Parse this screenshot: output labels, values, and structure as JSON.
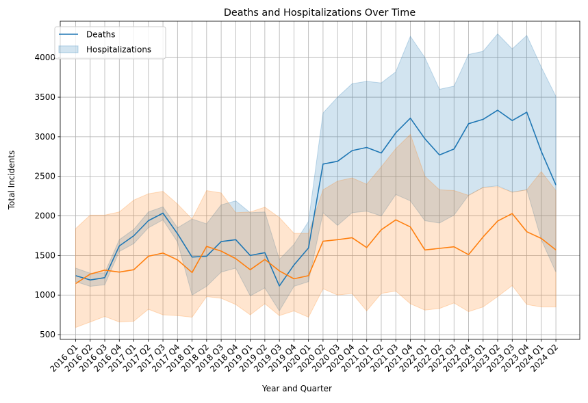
{
  "chart_data": {
    "type": "line",
    "title": "Deaths and Hospitalizations Over Time",
    "xlabel": "Year and Quarter",
    "ylabel": "Total Incidents",
    "ylim": [
      440,
      4460
    ],
    "yticks": [
      500,
      1000,
      1500,
      2000,
      2500,
      3000,
      3500,
      4000
    ],
    "grid": true,
    "legend_position": "top-left",
    "categories": [
      "2016 Q1",
      "2016 Q2",
      "2016 Q3",
      "2016 Q4",
      "2017 Q1",
      "2017 Q2",
      "2017 Q3",
      "2017 Q4",
      "2018 Q1",
      "2018 Q2",
      "2018 Q3",
      "2018 Q4",
      "2019 Q1",
      "2019 Q2",
      "2019 Q3",
      "2019 Q4",
      "2020 Q1",
      "2020 Q2",
      "2020 Q3",
      "2020 Q4",
      "2021 Q1",
      "2021 Q2",
      "2021 Q3",
      "2021 Q4",
      "2022 Q1",
      "2022 Q2",
      "2022 Q3",
      "2022 Q4",
      "2023 Q1",
      "2023 Q2",
      "2023 Q3",
      "2023 Q4",
      "2024 Q1",
      "2024 Q2"
    ],
    "series": [
      {
        "name": "Deaths",
        "color": "#1f77b4",
        "values": [
          1245,
          1190,
          1220,
          1620,
          1750,
          1940,
          2035,
          1775,
          1480,
          1490,
          1675,
          1700,
          1500,
          1535,
          1115,
          1380,
          1595,
          2655,
          2690,
          2825,
          2865,
          2795,
          3050,
          3235,
          2975,
          2770,
          2845,
          3165,
          3220,
          3335,
          3205,
          3310,
          2815,
          2390
        ],
        "band_low": [
          1170,
          1110,
          1130,
          1550,
          1650,
          1850,
          1950,
          1670,
          1000,
          1110,
          1290,
          1340,
          990,
          1090,
          800,
          1110,
          1170,
          2040,
          1880,
          2040,
          2060,
          2000,
          2270,
          2190,
          1940,
          1910,
          2010,
          2260,
          2360,
          2380,
          2300,
          2330,
          1700,
          1290
        ],
        "band_high": [
          1340,
          1275,
          1280,
          1700,
          1830,
          2050,
          2115,
          1850,
          1960,
          1900,
          2140,
          2190,
          2040,
          2050,
          1450,
          1640,
          1930,
          3300,
          3500,
          3670,
          3700,
          3680,
          3820,
          4270,
          4000,
          3600,
          3640,
          4040,
          4080,
          4300,
          4110,
          4280,
          3880,
          3510
        ]
      },
      {
        "name": "",
        "color": "#ff7f0e",
        "values": [
          1145,
          1265,
          1315,
          1290,
          1320,
          1490,
          1530,
          1445,
          1285,
          1615,
          1555,
          1460,
          1320,
          1450,
          1305,
          1205,
          1245,
          1680,
          1700,
          1725,
          1600,
          1825,
          1950,
          1860,
          1570,
          1590,
          1610,
          1510,
          1735,
          1935,
          2030,
          1800,
          1715,
          1570
        ],
        "band_low": [
          590,
          660,
          730,
          660,
          670,
          820,
          750,
          740,
          720,
          980,
          960,
          880,
          750,
          890,
          740,
          800,
          720,
          1080,
          1000,
          1020,
          800,
          1020,
          1050,
          890,
          810,
          830,
          900,
          790,
          850,
          980,
          1120,
          880,
          850,
          850
        ],
        "band_high": [
          1840,
          2010,
          2010,
          2050,
          2200,
          2280,
          2310,
          2150,
          1960,
          2320,
          2290,
          2040,
          2050,
          2110,
          1980,
          1780,
          1780,
          2330,
          2440,
          2480,
          2400,
          2620,
          2850,
          3030,
          2500,
          2330,
          2320,
          2260,
          2360,
          2370,
          2300,
          2330,
          2560,
          2320
        ]
      }
    ],
    "legend": [
      {
        "label": "Deaths",
        "kind": "line",
        "color": "#1f77b4"
      },
      {
        "label": "Hospitalizations",
        "kind": "band",
        "color": "#1f77b4"
      }
    ]
  }
}
